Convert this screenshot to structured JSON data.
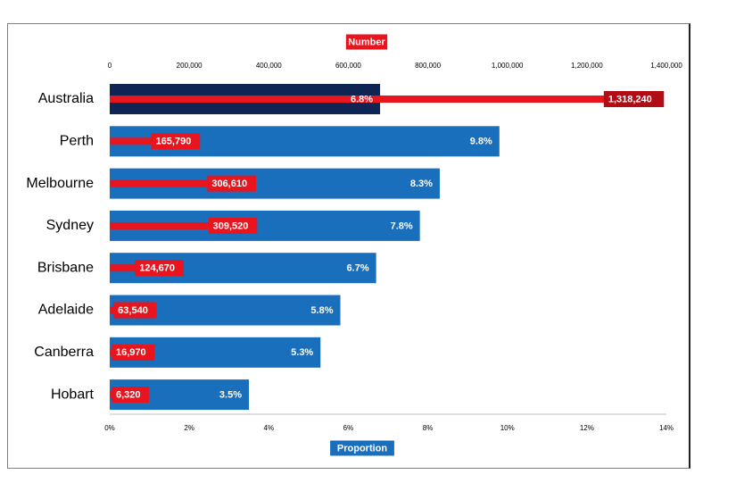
{
  "chart_data": {
    "type": "bar",
    "orientation": "horizontal",
    "categories": [
      "Australia",
      "Perth",
      "Melbourne",
      "Sydney",
      "Brisbane",
      "Adelaide",
      "Canberra",
      "Hobart"
    ],
    "series": [
      {
        "name": "Proportion",
        "axis": "bottom",
        "values": [
          6.8,
          9.8,
          8.3,
          7.8,
          6.7,
          5.8,
          5.3,
          3.5
        ],
        "labels": [
          "6.8%",
          "9.8%",
          "8.3%",
          "7.8%",
          "6.7%",
          "5.8%",
          "5.3%",
          "3.5%"
        ],
        "colors": [
          "#0e2453",
          "#1a6fbd",
          "#1a6fbd",
          "#1a6fbd",
          "#1a6fbd",
          "#1a6fbd",
          "#1a6fbd",
          "#1a6fbd"
        ]
      },
      {
        "name": "Number",
        "axis": "top",
        "values": [
          1318240,
          165790,
          306610,
          309520,
          124670,
          63540,
          16970,
          6320
        ],
        "labels": [
          "1,318,240",
          "165,790",
          "306,610",
          "309,520",
          "124,670",
          "63,540",
          "16,970",
          "6,320"
        ],
        "color": "#e8141e",
        "label_bg": [
          "#b00d14",
          "#e8141e",
          "#e8141e",
          "#e8141e",
          "#e8141e",
          "#e8141e",
          "#e8141e",
          "#e8141e"
        ]
      }
    ],
    "x_bottom": {
      "title": "Proportion",
      "title_bg": "#1a6fbd",
      "min": 0,
      "max": 14,
      "ticks": [
        0,
        2,
        4,
        6,
        8,
        10,
        12,
        14
      ],
      "tick_labels": [
        "0%",
        "2%",
        "4%",
        "6%",
        "8%",
        "10%",
        "12%",
        "14%"
      ]
    },
    "x_top": {
      "title": "Number",
      "title_bg": "#e8141e",
      "min": 0,
      "max": 1400000,
      "ticks": [
        0,
        200000,
        400000,
        600000,
        800000,
        1000000,
        1200000,
        1400000
      ],
      "tick_labels": [
        "0",
        "200,000",
        "400,000",
        "600,000",
        "800,000",
        "1,000,000",
        "1,200,000",
        "1,400,000"
      ]
    },
    "grid": false,
    "legend": "none"
  }
}
